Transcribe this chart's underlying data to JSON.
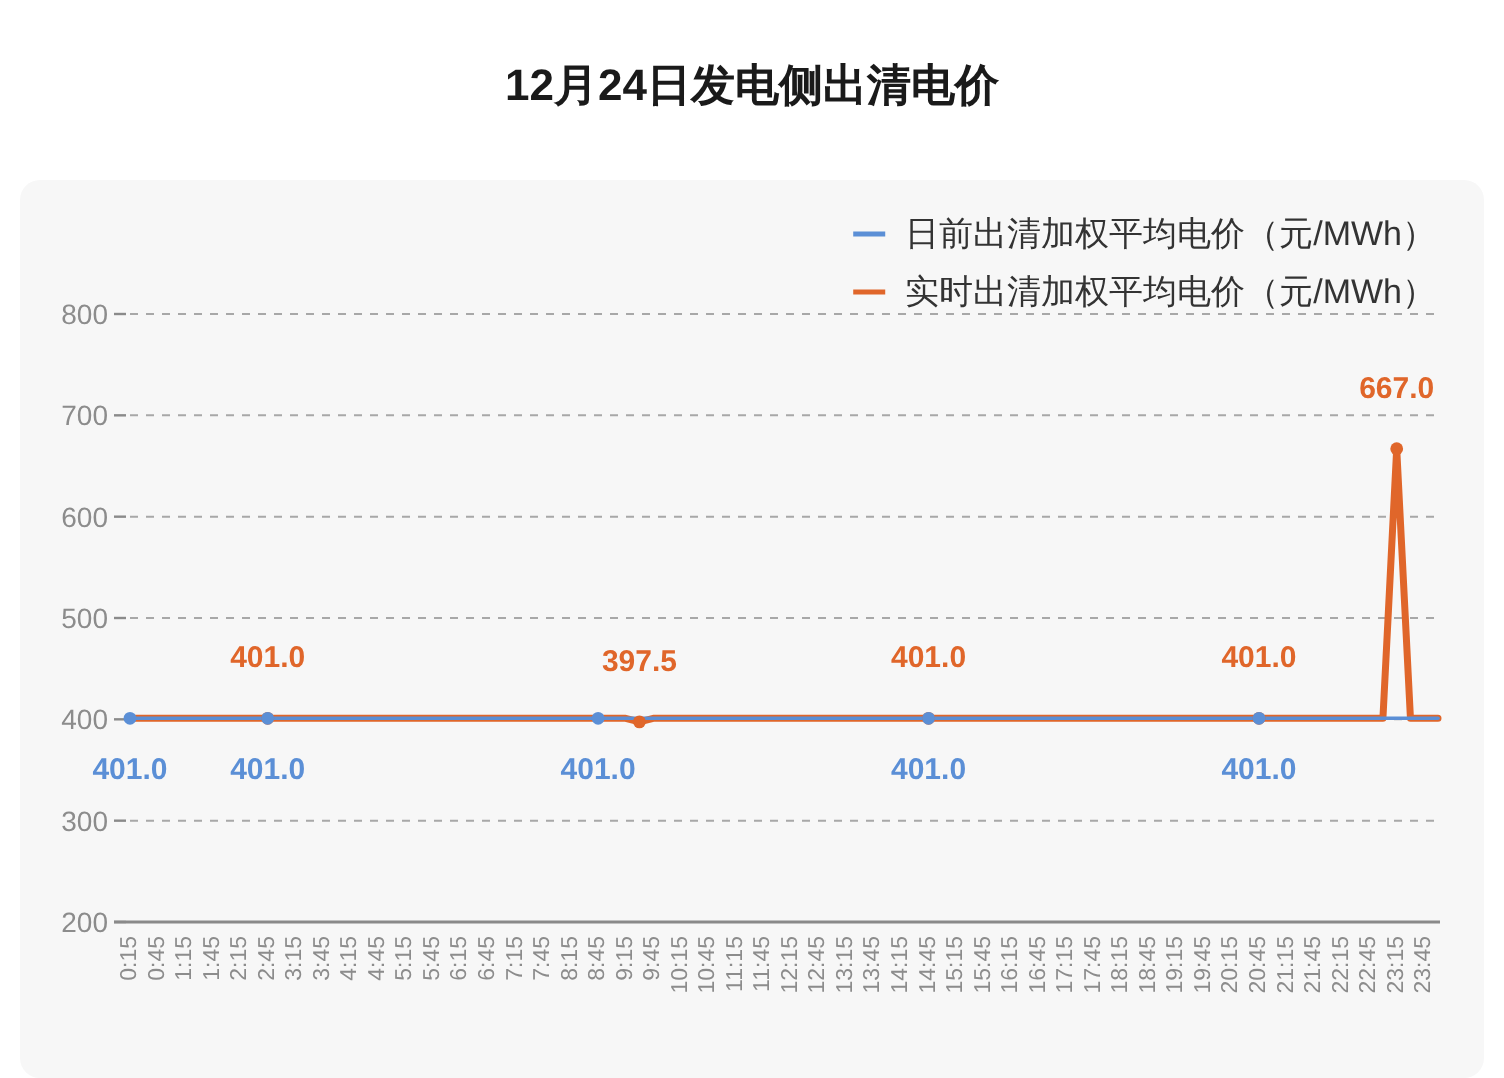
{
  "chart_data": {
    "type": "line",
    "title": "12月24日发电侧出清电价",
    "categories": [
      "0:15",
      null,
      "0:45",
      null,
      "1:15",
      null,
      "1:45",
      null,
      "2:15",
      null,
      "2:45",
      null,
      "3:15",
      null,
      "3:45",
      null,
      "4:15",
      null,
      "4:45",
      null,
      "5:15",
      null,
      "5:45",
      null,
      "6:15",
      null,
      "6:45",
      null,
      "7:15",
      null,
      "7:45",
      null,
      "8:15",
      null,
      "8:45",
      null,
      "9:15",
      null,
      "9:45",
      null,
      "10:15",
      null,
      "10:45",
      null,
      "11:15",
      null,
      "11:45",
      null,
      "12:15",
      null,
      "12:45",
      null,
      "13:15",
      null,
      "13:45",
      null,
      "14:15",
      null,
      "14:45",
      null,
      "15:15",
      null,
      "15:45",
      null,
      "16:15",
      null,
      "16:45",
      null,
      "17:15",
      null,
      "17:45",
      null,
      "18:15",
      null,
      "18:45",
      null,
      "19:15",
      null,
      "19:45",
      null,
      "20:15",
      null,
      "20:45",
      null,
      "21:15",
      null,
      "21:45",
      null,
      "22:15",
      null,
      "22:45",
      null,
      "23:15",
      null,
      "23:45",
      null
    ],
    "series": [
      {
        "name": "日前出清加权平均电价（元/MWh）",
        "color": "#5b8fd6",
        "values": [
          401.0,
          401.0,
          401.0,
          401.0,
          401.0,
          401.0,
          401.0,
          401.0,
          401.0,
          401.0,
          401.0,
          401.0,
          401.0,
          401.0,
          401.0,
          401.0,
          401.0,
          401.0,
          401.0,
          401.0,
          401.0,
          401.0,
          401.0,
          401.0,
          401.0,
          401.0,
          401.0,
          401.0,
          401.0,
          401.0,
          401.0,
          401.0,
          401.0,
          401.0,
          401.0,
          401.0,
          401.0,
          401.0,
          401.0,
          401.0,
          401.0,
          401.0,
          401.0,
          401.0,
          401.0,
          401.0,
          401.0,
          401.0,
          401.0,
          401.0,
          401.0,
          401.0,
          401.0,
          401.0,
          401.0,
          401.0,
          401.0,
          401.0,
          401.0,
          401.0,
          401.0,
          401.0,
          401.0,
          401.0,
          401.0,
          401.0,
          401.0,
          401.0,
          401.0,
          401.0,
          401.0,
          401.0,
          401.0,
          401.0,
          401.0,
          401.0,
          401.0,
          401.0,
          401.0,
          401.0,
          401.0,
          401.0,
          401.0,
          401.0,
          401.0,
          401.0,
          401.0,
          401.0,
          401.0,
          401.0,
          401.0,
          401.0,
          401.0,
          401.0,
          401.0,
          401.0
        ],
        "value_labels": [
          "401.0",
          null,
          null,
          null,
          null,
          null,
          null,
          null,
          null,
          null,
          "401.0",
          null,
          null,
          null,
          null,
          null,
          null,
          null,
          null,
          null,
          null,
          null,
          null,
          null,
          null,
          null,
          null,
          null,
          null,
          null,
          null,
          null,
          null,
          null,
          "401.0",
          null,
          null,
          null,
          null,
          null,
          null,
          null,
          null,
          null,
          null,
          null,
          null,
          null,
          null,
          null,
          null,
          null,
          null,
          null,
          null,
          null,
          null,
          null,
          "401.0",
          null,
          null,
          null,
          null,
          null,
          null,
          null,
          null,
          null,
          null,
          null,
          null,
          null,
          null,
          null,
          null,
          null,
          null,
          null,
          null,
          null,
          null,
          null,
          "401.0",
          null,
          null,
          null,
          null,
          null,
          null,
          null,
          null,
          null,
          null,
          null,
          null,
          null
        ]
      },
      {
        "name": "实时出清加权平均电价（元/MWh）",
        "color": "#e0662a",
        "values": [
          401.0,
          401.0,
          401.0,
          401.0,
          401.0,
          401.0,
          401.0,
          401.0,
          401.0,
          401.0,
          401.0,
          401.0,
          401.0,
          401.0,
          401.0,
          401.0,
          401.0,
          401.0,
          401.0,
          401.0,
          401.0,
          401.0,
          401.0,
          401.0,
          401.0,
          401.0,
          401.0,
          401.0,
          401.0,
          401.0,
          401.0,
          401.0,
          401.0,
          401.0,
          401.0,
          401.0,
          401.0,
          397.5,
          401.0,
          401.0,
          401.0,
          401.0,
          401.0,
          401.0,
          401.0,
          401.0,
          401.0,
          401.0,
          401.0,
          401.0,
          401.0,
          401.0,
          401.0,
          401.0,
          401.0,
          401.0,
          401.0,
          401.0,
          401.0,
          401.0,
          401.0,
          401.0,
          401.0,
          401.0,
          401.0,
          401.0,
          401.0,
          401.0,
          401.0,
          401.0,
          401.0,
          401.0,
          401.0,
          401.0,
          401.0,
          401.0,
          401.0,
          401.0,
          401.0,
          401.0,
          401.0,
          401.0,
          401.0,
          401.0,
          401.0,
          401.0,
          401.0,
          401.0,
          401.0,
          401.0,
          401.0,
          401.0,
          667.0,
          401.0,
          401.0,
          401.0
        ],
        "value_labels": [
          null,
          null,
          null,
          null,
          null,
          null,
          null,
          null,
          null,
          null,
          "401.0",
          null,
          null,
          null,
          null,
          null,
          null,
          null,
          null,
          null,
          null,
          null,
          null,
          null,
          null,
          null,
          null,
          null,
          null,
          null,
          null,
          null,
          null,
          null,
          null,
          null,
          null,
          "397.5",
          null,
          null,
          null,
          null,
          null,
          null,
          null,
          null,
          null,
          null,
          null,
          null,
          null,
          null,
          null,
          null,
          null,
          null,
          null,
          null,
          "401.0",
          null,
          null,
          null,
          null,
          null,
          null,
          null,
          null,
          null,
          null,
          null,
          null,
          null,
          null,
          null,
          null,
          null,
          null,
          null,
          null,
          null,
          null,
          null,
          "401.0",
          null,
          null,
          null,
          null,
          null,
          null,
          null,
          null,
          null,
          "667.0",
          null,
          null,
          null
        ]
      }
    ],
    "ylim": [
      200,
      800
    ],
    "yticks": [
      200,
      300,
      400,
      500,
      600,
      700,
      800
    ],
    "grid": "y",
    "legend": "top right"
  }
}
